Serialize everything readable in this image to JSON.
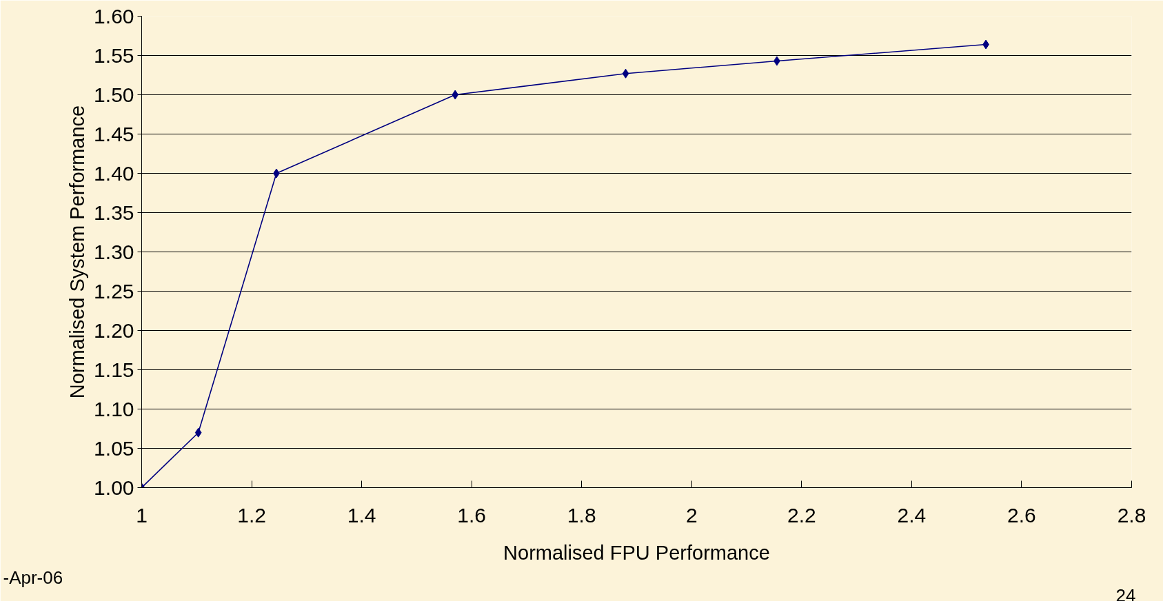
{
  "chart_data": {
    "type": "line",
    "xlabel": "Normalised FPU Performance",
    "ylabel": "Normalised System Performance",
    "x": [
      1,
      1.103,
      1.245,
      1.57,
      1.88,
      2.155,
      2.535
    ],
    "series": [
      {
        "color": "#000080",
        "values": [
          1.0,
          1.07,
          1.4,
          1.5,
          1.527,
          1.543,
          1.564
        ]
      }
    ],
    "xlim": [
      1,
      2.8
    ],
    "xticks": [
      1,
      1.2,
      1.4,
      1.6,
      1.8,
      2,
      2.2,
      2.4,
      2.6,
      2.8
    ],
    "ylim": [
      1.0,
      1.6
    ],
    "yticks": [
      {
        "value": 1.0,
        "label": "1.00"
      },
      {
        "value": 1.05,
        "label": "1.05"
      },
      {
        "value": 1.1,
        "label": "1.10"
      },
      {
        "value": 1.15,
        "label": "1.15"
      },
      {
        "value": 1.2,
        "label": "1.20"
      },
      {
        "value": 1.25,
        "label": "1.25"
      },
      {
        "value": 1.3,
        "label": "1.30"
      },
      {
        "value": 1.35,
        "label": "1.35"
      },
      {
        "value": 1.4,
        "label": "1.40"
      },
      {
        "value": 1.45,
        "label": "1.45"
      },
      {
        "value": 1.5,
        "label": "1.50"
      },
      {
        "value": 1.55,
        "label": "1.55"
      },
      {
        "value": 1.6,
        "label": "1.60"
      }
    ],
    "grid": "y",
    "marker": "diamond",
    "line_style": "solid",
    "annotations": [
      "-Apr-06",
      "24"
    ]
  }
}
